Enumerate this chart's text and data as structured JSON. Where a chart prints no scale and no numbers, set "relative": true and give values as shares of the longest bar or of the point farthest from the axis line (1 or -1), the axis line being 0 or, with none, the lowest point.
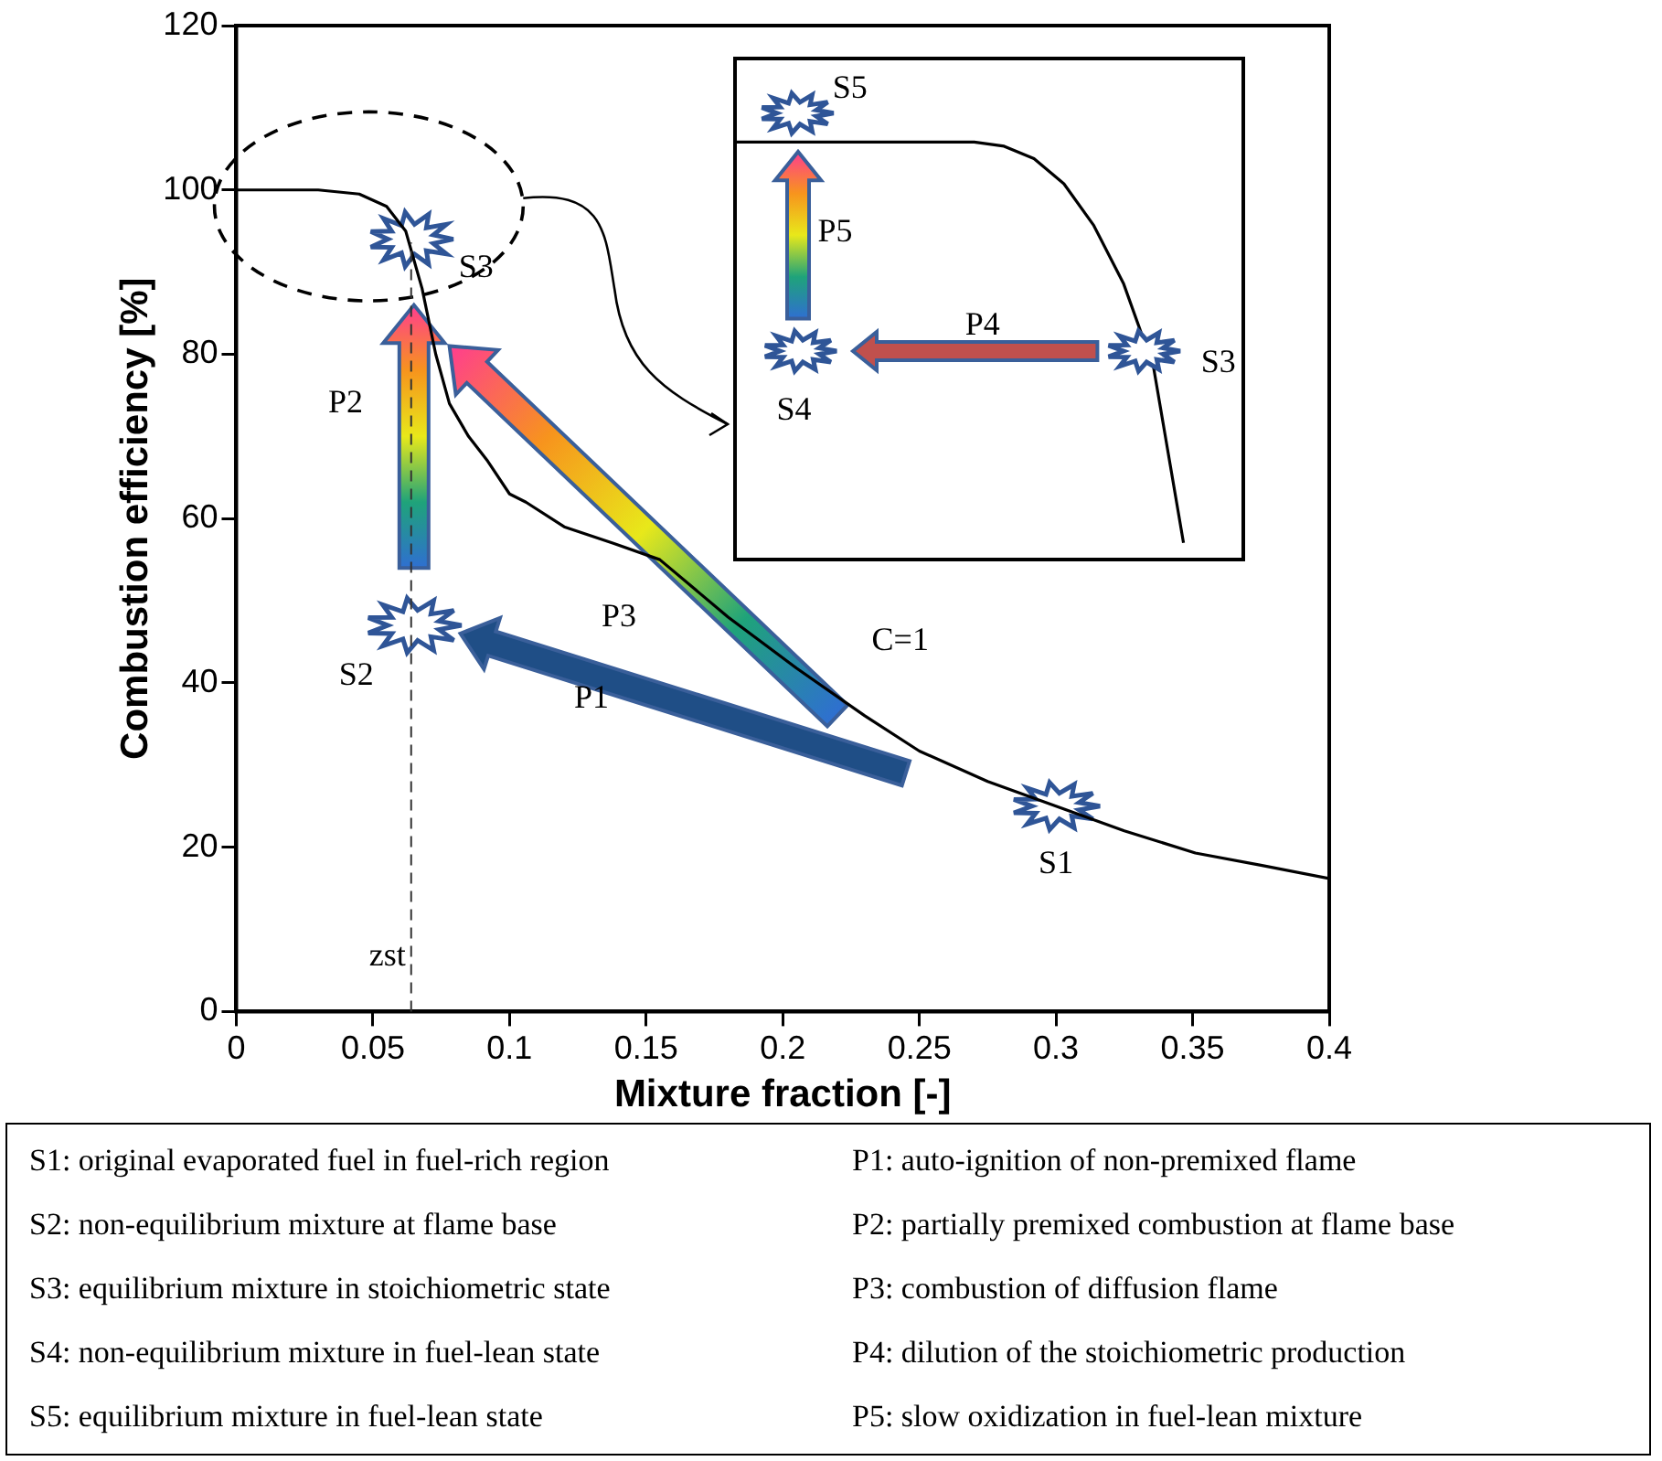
{
  "chart_data": [
    {
      "type": "line",
      "xlabel": "Mixture fraction [-]",
      "ylabel": "Combustion efficiency [%]",
      "xlim": [
        0,
        0.4
      ],
      "xticks": [
        0,
        0.05,
        0.1,
        0.15,
        0.2,
        0.25,
        0.3,
        0.35,
        0.4
      ],
      "ylim": [
        0,
        120
      ],
      "yticks": [
        0,
        20,
        40,
        60,
        80,
        100,
        120
      ],
      "grid": false,
      "marker": "none",
      "line_style": "solid",
      "series": [
        {
          "color": "#000000",
          "x": [
            0,
            0.03,
            0.045,
            0.055,
            0.062,
            0.068,
            0.073,
            0.078,
            0.085,
            0.092,
            0.1,
            0.106,
            0.12,
            0.138,
            0.155,
            0.18,
            0.205,
            0.23,
            0.25,
            0.275,
            0.3,
            0.325,
            0.351,
            0.375,
            0.4
          ],
          "values": [
            100,
            100,
            99.5,
            98,
            95,
            88,
            80,
            74,
            70,
            67,
            63,
            62,
            59,
            57,
            55,
            48,
            41.8,
            36,
            31.7,
            28,
            25,
            22,
            19.3,
            17.8,
            16.2
          ]
        }
      ],
      "ref_lines": [
        {
          "axis": "x",
          "value": 0.064,
          "label": "zst",
          "line_style": "dashed"
        }
      ],
      "annotations": [
        {
          "text": "S1",
          "x": 0.3,
          "y": 25
        },
        {
          "text": "S2",
          "x": 0.065,
          "y": 47
        },
        {
          "text": "S3",
          "x": 0.064,
          "y": 94
        },
        "P1",
        "P2",
        "P3",
        "C=1",
        "S1:  original evaporated fuel in fuel-rich region",
        "S2:  non-equilibrium mixture at flame base",
        "S3:  equilibrium mixture in stoichiometric state",
        "S4:  non-equilibrium mixture in fuel-lean state",
        "S5:  equilibrium mixture in fuel-lean state",
        "P1:  auto-ignition of non-premixed flame",
        "P2:  partially premixed combustion at flame base",
        "P3:  combustion of diffusion flame",
        "P4:  dilution of the stoichiometric production",
        "P5:  slow oxidization in fuel-lean mixture"
      ]
    },
    {
      "type": "line",
      "relative": true,
      "marker": "none",
      "line_style": "solid",
      "categories": [
        null,
        null,
        null,
        null,
        null,
        null,
        null,
        null,
        null,
        null,
        null,
        null,
        null,
        null,
        null,
        null,
        null,
        null
      ],
      "series": [
        {
          "color": "#000000",
          "values": [
            1,
            1,
            1,
            1,
            1,
            1,
            1,
            1,
            1,
            0.99,
            0.96,
            0.9,
            0.8,
            0.66,
            0.46,
            0.04,
            null,
            null
          ]
        }
      ],
      "annotations": [
        "S5",
        "P5",
        "S4",
        "P4",
        "S3"
      ]
    }
  ]
}
